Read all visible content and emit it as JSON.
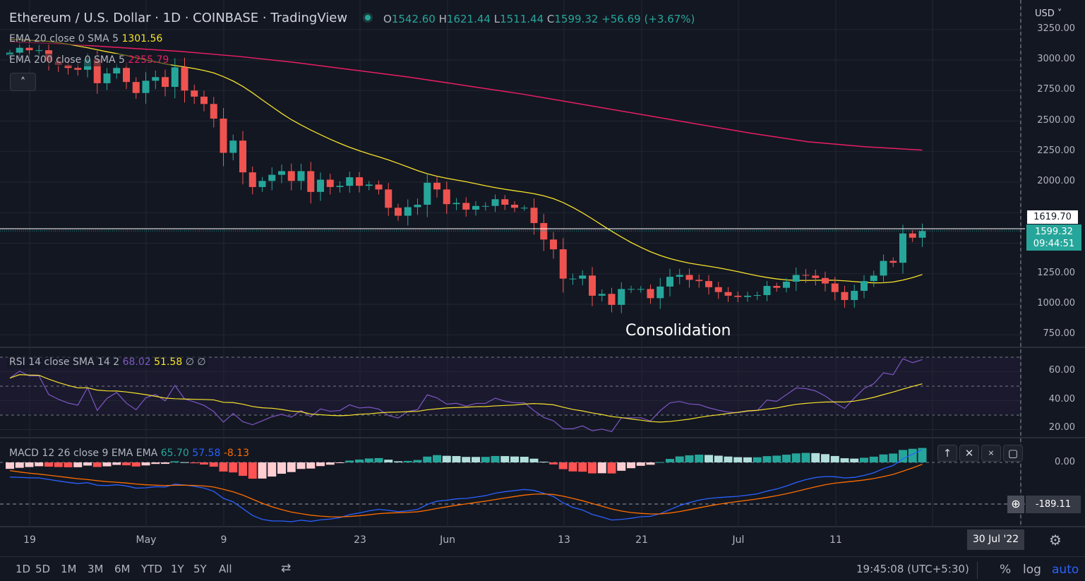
{
  "header": {
    "title": "Ethereum / U.S. Dollar · 1D · COINBASE · TradingView",
    "o_label": "O",
    "o": "1542.60",
    "h_label": "H",
    "h": "1621.44",
    "l_label": "L",
    "l": "1511.44",
    "c_label": "C",
    "c": "1599.32",
    "change": "+56.69 (+3.67%)"
  },
  "legends": {
    "ema20_label": "EMA 20 close 0 SMA 5",
    "ema20_value": "1301.56",
    "ema200_label": "EMA 200 close 0 SMA 5",
    "ema200_value": "2255.79",
    "rsi_label": "RSI 14 close SMA 14 2",
    "rsi_value": "68.02",
    "rsi_sma_value": "51.58",
    "rsi_extra": "∅ ∅",
    "macd_label": "MACD 12 26 close 9 EMA EMA",
    "macd_hist": "65.70",
    "macd_line": "57.58",
    "macd_signal": "-8.13"
  },
  "annotation": "Consolidation",
  "price_axis": {
    "currency": "USD",
    "ticks": [
      "3250.00",
      "3000.00",
      "2750.00",
      "2500.00",
      "2250.00",
      "2000.00",
      "1250.00",
      "1000.00",
      "750.00"
    ],
    "crosshair_price": "1619.70",
    "last_price": "1599.32",
    "countdown": "09:44:51"
  },
  "rsi_axis": {
    "ticks": [
      "60.00",
      "40.00",
      "20.00"
    ]
  },
  "macd_axis": {
    "ticks": [
      "0.00"
    ],
    "crosshair_value": "-189.11"
  },
  "time_axis": {
    "labels": [
      "19",
      "May",
      "9",
      "23",
      "Jun",
      "13",
      "21",
      "Jul",
      "11"
    ],
    "crosshair_date": "30 Jul '22"
  },
  "toolbar": {
    "ranges": [
      "1D",
      "5D",
      "1M",
      "3M",
      "6M",
      "YTD",
      "1Y",
      "5Y",
      "All"
    ],
    "clock": "19:45:08 (UTC+5:30)",
    "percent": "%",
    "log": "log",
    "auto": "auto"
  },
  "colors": {
    "up": "#26a69a",
    "down": "#ef5350",
    "ema20": "#f7e22b",
    "ema200": "#e91e63",
    "rsi": "#7e57c2",
    "macd": "#2962ff",
    "signal": "#ff6d00"
  },
  "chart_data": {
    "type": "candlestick",
    "start_date": "2022-04-17",
    "closes": [
      3060,
      3100,
      3080,
      3080,
      2990,
      2960,
      2935,
      2920,
      3005,
      2810,
      2890,
      2935,
      2820,
      2730,
      2830,
      2860,
      2780,
      2940,
      2750,
      2700,
      2640,
      2520,
      2240,
      2340,
      2080,
      1960,
      2010,
      2060,
      2090,
      2010,
      2090,
      1920,
      2020,
      1960,
      1970,
      2040,
      1970,
      1980,
      1940,
      1790,
      1725,
      1795,
      1815,
      1995,
      1940,
      1820,
      1830,
      1775,
      1805,
      1805,
      1860,
      1815,
      1790,
      1790,
      1665,
      1530,
      1450,
      1210,
      1210,
      1235,
      1070,
      1085,
      995,
      1125,
      1125,
      1125,
      1050,
      1145,
      1225,
      1240,
      1200,
      1190,
      1140,
      1100,
      1070,
      1060,
      1070,
      1075,
      1150,
      1135,
      1185,
      1240,
      1235,
      1215,
      1170,
      1100,
      1035,
      1110,
      1190,
      1235,
      1355,
      1340,
      1580,
      1545,
      1599.32
    ],
    "ema200": [
      3150,
      3130,
      3100,
      3070,
      3030,
      2980,
      2920,
      2860,
      2790,
      2720,
      2640,
      2560,
      2480,
      2400,
      2330,
      2290,
      2262
    ],
    "price_range": [
      620,
      3300
    ],
    "rsi_range": [
      14,
      76
    ],
    "macd_range": [
      -280,
      110
    ]
  }
}
